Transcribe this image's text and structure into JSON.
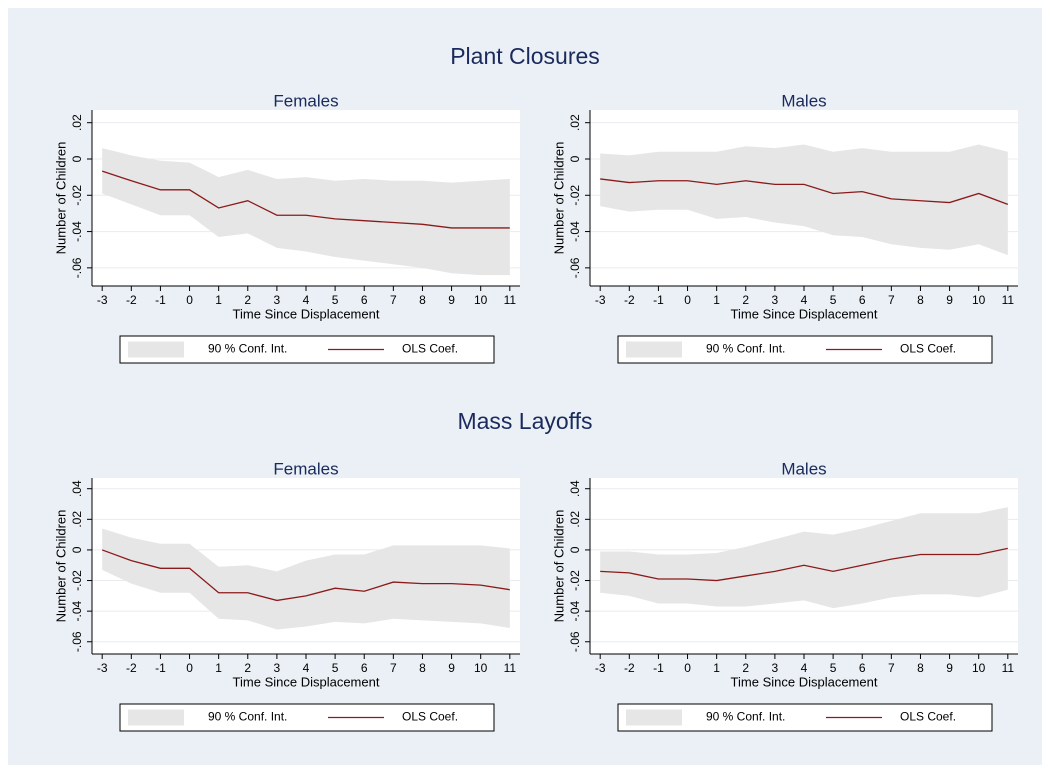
{
  "figure_titles": [
    "Plant Closures",
    "Mass Layoffs"
  ],
  "chart_data": [
    {
      "type": "line",
      "title": "Females",
      "xlabel": "Time Since Displacement",
      "ylabel": "Number of Children",
      "x": [
        -3,
        -2,
        -1,
        0,
        1,
        2,
        3,
        4,
        5,
        6,
        7,
        8,
        9,
        10,
        11
      ],
      "xlim": [
        -3.35,
        11.35
      ],
      "xticks": [
        -3,
        -2,
        -1,
        0,
        1,
        2,
        3,
        4,
        5,
        6,
        7,
        8,
        9,
        10,
        11
      ],
      "ylim": [
        -0.07,
        0.027
      ],
      "yticks": [
        {
          "value": 0.02,
          "label": ".02"
        },
        0,
        {
          "value": -0.02,
          "label": "-.02"
        },
        {
          "value": -0.04,
          "label": "-.04"
        },
        {
          "value": -0.06,
          "label": "-.06"
        }
      ],
      "grid": true,
      "legend": "bottom",
      "series": [
        {
          "name": "90 % Conf. Int.",
          "type": "band",
          "color": "#e6e6e6",
          "upper": [
            0.006,
            0.002,
            -0.001,
            -0.002,
            -0.01,
            -0.006,
            -0.011,
            -0.01,
            -0.012,
            -0.011,
            -0.012,
            -0.012,
            -0.013,
            -0.012,
            -0.011
          ],
          "lower": [
            -0.019,
            -0.025,
            -0.031,
            -0.031,
            -0.043,
            -0.041,
            -0.049,
            -0.051,
            -0.054,
            -0.056,
            -0.058,
            -0.06,
            -0.063,
            -0.064,
            -0.064
          ]
        },
        {
          "name": "OLS Coef.",
          "type": "line",
          "color": "#8b1a1a",
          "values": [
            -0.0067,
            -0.012,
            -0.017,
            -0.017,
            -0.027,
            -0.023,
            -0.031,
            -0.031,
            -0.033,
            -0.034,
            -0.035,
            -0.036,
            -0.038,
            -0.038,
            -0.038
          ]
        }
      ]
    },
    {
      "type": "line",
      "title": "Males",
      "xlabel": "Time Since Displacement",
      "ylabel": "Number of Children",
      "x": [
        -3,
        -2,
        -1,
        0,
        1,
        2,
        3,
        4,
        5,
        6,
        7,
        8,
        9,
        10,
        11
      ],
      "xlim": [
        -3.35,
        11.35
      ],
      "xticks": [
        -3,
        -2,
        -1,
        0,
        1,
        2,
        3,
        4,
        5,
        6,
        7,
        8,
        9,
        10,
        11
      ],
      "ylim": [
        -0.07,
        0.027
      ],
      "yticks": [
        {
          "value": 0.02,
          "label": ".02"
        },
        0,
        {
          "value": -0.02,
          "label": "-.02"
        },
        {
          "value": -0.04,
          "label": "-.04"
        },
        {
          "value": -0.06,
          "label": "-.06"
        }
      ],
      "grid": true,
      "legend": "bottom",
      "series": [
        {
          "name": "90 % Conf. Int.",
          "type": "band",
          "color": "#e6e6e6",
          "upper": [
            0.003,
            0.002,
            0.004,
            0.004,
            0.004,
            0.007,
            0.006,
            0.008,
            0.004,
            0.006,
            0.004,
            0.004,
            0.004,
            0.008,
            0.004
          ],
          "lower": [
            -0.026,
            -0.029,
            -0.028,
            -0.028,
            -0.033,
            -0.032,
            -0.035,
            -0.037,
            -0.042,
            -0.043,
            -0.047,
            -0.049,
            -0.05,
            -0.047,
            -0.053
          ]
        },
        {
          "name": "OLS Coef.",
          "type": "line",
          "color": "#8b1a1a",
          "values": [
            -0.011,
            -0.013,
            -0.012,
            -0.012,
            -0.014,
            -0.012,
            -0.014,
            -0.014,
            -0.019,
            -0.018,
            -0.022,
            -0.023,
            -0.024,
            -0.019,
            -0.025
          ]
        }
      ]
    },
    {
      "type": "line",
      "title": "Females",
      "xlabel": "Time Since Displacement",
      "ylabel": "Number of Children",
      "x": [
        -3,
        -2,
        -1,
        0,
        1,
        2,
        3,
        4,
        5,
        6,
        7,
        8,
        9,
        10,
        11
      ],
      "xlim": [
        -3.35,
        11.35
      ],
      "xticks": [
        -3,
        -2,
        -1,
        0,
        1,
        2,
        3,
        4,
        5,
        6,
        7,
        8,
        9,
        10,
        11
      ],
      "ylim": [
        -0.068,
        0.047
      ],
      "yticks": [
        {
          "value": 0.04,
          "label": ".04"
        },
        {
          "value": 0.02,
          "label": ".02"
        },
        0,
        {
          "value": -0.02,
          "label": "-.02"
        },
        {
          "value": -0.04,
          "label": "-.04"
        },
        {
          "value": -0.06,
          "label": "-.06"
        }
      ],
      "grid": true,
      "legend": "bottom",
      "series": [
        {
          "name": "90 % Conf. Int.",
          "type": "band",
          "color": "#e6e6e6",
          "upper": [
            0.014,
            0.008,
            0.004,
            0.004,
            -0.011,
            -0.01,
            -0.014,
            -0.007,
            -0.003,
            -0.003,
            0.003,
            0.003,
            0.003,
            0.003,
            0.001
          ],
          "lower": [
            -0.013,
            -0.022,
            -0.028,
            -0.028,
            -0.045,
            -0.046,
            -0.052,
            -0.05,
            -0.047,
            -0.048,
            -0.045,
            -0.046,
            -0.047,
            -0.048,
            -0.051
          ]
        },
        {
          "name": "OLS Coef.",
          "type": "line",
          "color": "#8b1a1a",
          "values": [
            0,
            -0.007,
            -0.012,
            -0.012,
            -0.028,
            -0.028,
            -0.033,
            -0.03,
            -0.025,
            -0.027,
            -0.021,
            -0.022,
            -0.022,
            -0.023,
            -0.026
          ]
        }
      ]
    },
    {
      "type": "line",
      "title": "Males",
      "xlabel": "Time Since Displacement",
      "ylabel": "Number of Children",
      "x": [
        -3,
        -2,
        -1,
        0,
        1,
        2,
        3,
        4,
        5,
        6,
        7,
        8,
        9,
        10,
        11
      ],
      "xlim": [
        -3.35,
        11.35
      ],
      "xticks": [
        -3,
        -2,
        -1,
        0,
        1,
        2,
        3,
        4,
        5,
        6,
        7,
        8,
        9,
        10,
        11
      ],
      "ylim": [
        -0.068,
        0.047
      ],
      "yticks": [
        {
          "value": 0.04,
          "label": ".04"
        },
        {
          "value": 0.02,
          "label": ".02"
        },
        0,
        {
          "value": -0.02,
          "label": "-.02"
        },
        {
          "value": -0.04,
          "label": "-.04"
        },
        {
          "value": -0.06,
          "label": "-.06"
        }
      ],
      "grid": true,
      "legend": "bottom",
      "series": [
        {
          "name": "90 % Conf. Int.",
          "type": "band",
          "color": "#e6e6e6",
          "upper": [
            -0.001,
            -0.001,
            -0.003,
            -0.003,
            -0.002,
            0.002,
            0.007,
            0.012,
            0.01,
            0.014,
            0.019,
            0.024,
            0.024,
            0.024,
            0.028
          ],
          "lower": [
            -0.028,
            -0.03,
            -0.035,
            -0.035,
            -0.037,
            -0.037,
            -0.035,
            -0.033,
            -0.038,
            -0.035,
            -0.031,
            -0.029,
            -0.029,
            -0.031,
            -0.026
          ]
        },
        {
          "name": "OLS Coef.",
          "type": "line",
          "color": "#8b1a1a",
          "values": [
            -0.014,
            -0.015,
            -0.019,
            -0.019,
            -0.02,
            -0.017,
            -0.014,
            -0.01,
            -0.014,
            -0.01,
            -0.006,
            -0.003,
            -0.003,
            -0.003,
            0.001
          ]
        }
      ]
    }
  ]
}
